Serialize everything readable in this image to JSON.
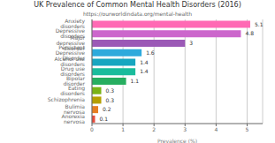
{
  "chart_data": {
    "type": "bar",
    "orientation": "horizontal",
    "title": "UK Prevalence of Common Mental Health Disorders (2016)",
    "subtitle": "https://ourworldindata.org/mental-health",
    "xlabel": "Prevalence (%)",
    "categories": [
      "Anorexia nervosa",
      "Bulimia nervosa",
      "Schizophrenia",
      "Eating disorders",
      "Bipolar disorder",
      "Drug use disorders",
      "Alcohol use disorders",
      "Persistent Depressive Disorder",
      "Major depressive disorder",
      "Depressive disorders",
      "Anxiety disorders"
    ],
    "values": [
      0.1,
      0.2,
      0.3,
      0.3,
      1.1,
      1.4,
      1.4,
      1.6,
      3.0,
      4.8,
      5.1
    ],
    "colors": [
      "#e74c3c",
      "#e67e22",
      "#b5a000",
      "#7ab317",
      "#27ae60",
      "#1abc9c",
      "#17a6c0",
      "#2eaadc",
      "#9b59b6",
      "#cc66cc",
      "#ff69b4"
    ],
    "xlim": [
      0,
      5.5
    ],
    "xticks": [
      0,
      1,
      2,
      3,
      4,
      5
    ],
    "grid": true,
    "data_labels": true
  }
}
